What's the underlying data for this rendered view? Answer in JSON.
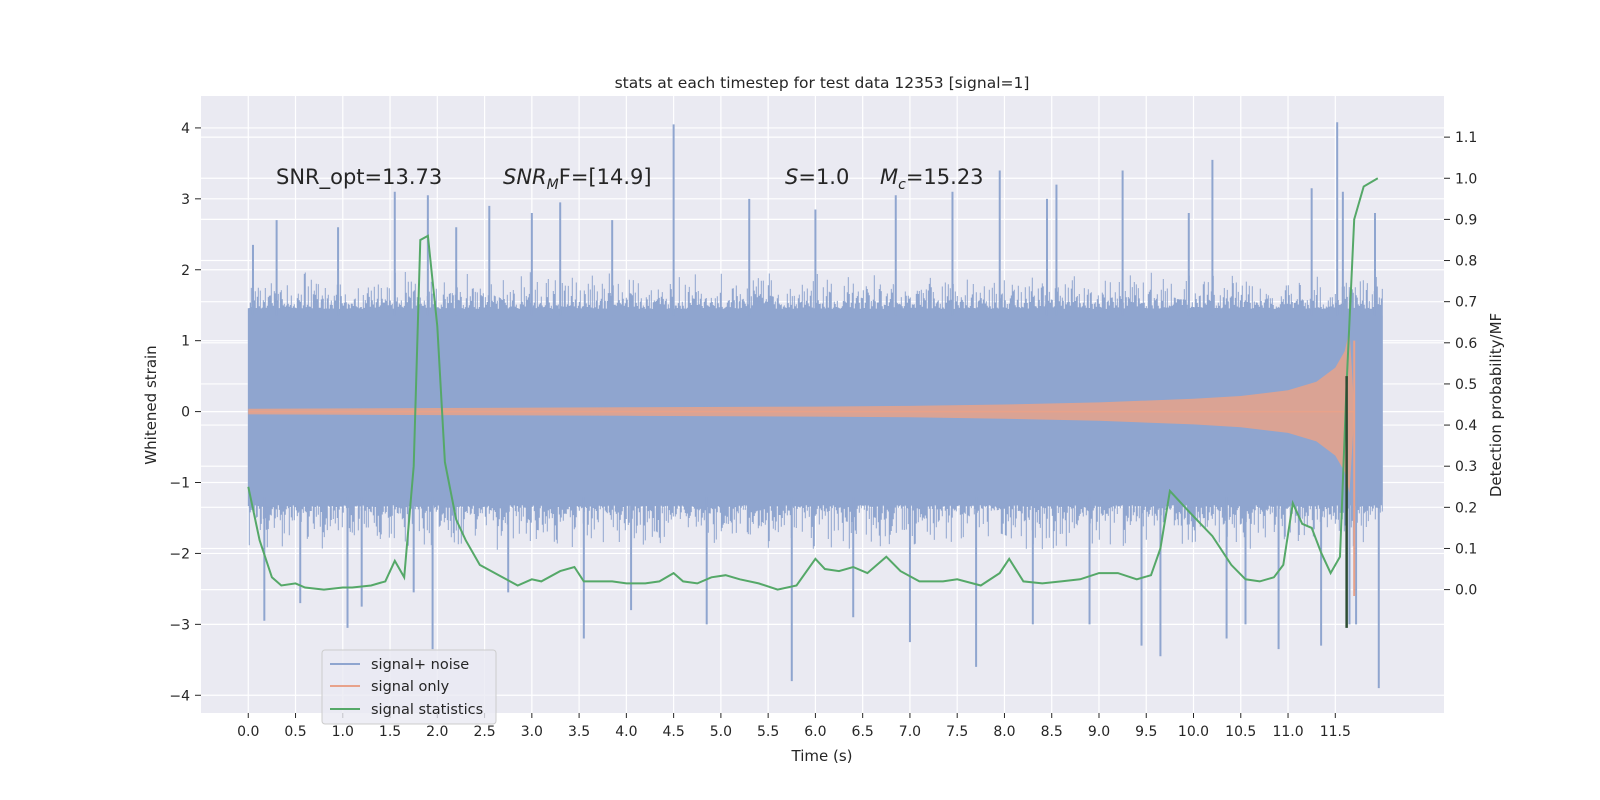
{
  "chart_data": {
    "type": "line",
    "title": "stats at each timestep for test data 12353 [signal=1]",
    "xlabel": "Time (s)",
    "ylabel": "Whitened strain",
    "ylabel_right": "Detection probability/MF",
    "xlim": [
      -0.5,
      12.65
    ],
    "ylim": [
      -4.25,
      4.45
    ],
    "ylim_right": [
      -0.3,
      1.2
    ],
    "xticks": [
      0.0,
      0.5,
      1.0,
      1.5,
      2.0,
      2.5,
      3.0,
      3.5,
      4.0,
      4.5,
      5.0,
      5.5,
      6.0,
      6.5,
      7.0,
      7.5,
      8.0,
      8.5,
      9.0,
      9.5,
      10.0,
      10.5,
      11.0,
      11.5
    ],
    "xtick_labels": [
      "0.0",
      "0.5",
      "1.0",
      "1.5",
      "2.0",
      "2.5",
      "3.0",
      "3.5",
      "4.0",
      "4.5",
      "5.0",
      "5.5",
      "6.0",
      "6.5",
      "7.0",
      "7.5",
      "8.0",
      "8.5",
      "9.0",
      "9.5",
      "10.0",
      "10.5",
      "11.0",
      "11.5"
    ],
    "yticks_left": [
      -4,
      -3,
      -2,
      -1,
      0,
      1,
      2,
      3,
      4
    ],
    "yticks_left_labels": [
      "−4",
      "−3",
      "−2",
      "−1",
      "0",
      "1",
      "2",
      "3",
      "4"
    ],
    "yticks_right": [
      0.0,
      0.1,
      0.2,
      0.3,
      0.4,
      0.5,
      0.6,
      0.7,
      0.8,
      0.9,
      1.0,
      1.1
    ],
    "yticks_right_labels": [
      "0.0",
      "0.1",
      "0.2",
      "0.3",
      "0.4",
      "0.5",
      "0.6",
      "0.7",
      "0.8",
      "0.9",
      "1.0",
      "1.1"
    ],
    "grid": true,
    "legend_placement": "lower-left",
    "annotations": {
      "snr_opt": "SNR_opt=13.73",
      "snr_mf_base": "SNR",
      "snr_mf_sub": "M",
      "snr_mf_rest": "F=[14.9]",
      "s_label": "S",
      "s_rest": "=1.0",
      "mc_label": "M",
      "mc_sub": "c",
      "mc_rest": "=15.23"
    },
    "series": [
      {
        "name": "signal+ noise",
        "color": "#8fa5cf",
        "axis": "left",
        "x_range": [
          0.0,
          12.0
        ],
        "peak_values": [
          [
            0.05,
            2.35
          ],
          [
            0.17,
            -2.95
          ],
          [
            0.3,
            2.7
          ],
          [
            0.55,
            -2.7
          ],
          [
            0.95,
            2.6
          ],
          [
            1.05,
            -3.05
          ],
          [
            1.2,
            -2.75
          ],
          [
            1.55,
            3.1
          ],
          [
            1.75,
            -2.55
          ],
          [
            1.9,
            3.05
          ],
          [
            1.95,
            -3.35
          ],
          [
            2.2,
            2.6
          ],
          [
            2.55,
            2.9
          ],
          [
            2.75,
            -2.55
          ],
          [
            3.0,
            2.8
          ],
          [
            3.3,
            2.95
          ],
          [
            3.55,
            -3.2
          ],
          [
            3.85,
            2.7
          ],
          [
            4.05,
            -2.8
          ],
          [
            4.5,
            4.05
          ],
          [
            4.85,
            -3.0
          ],
          [
            5.3,
            3.0
          ],
          [
            5.75,
            -3.8
          ],
          [
            6.0,
            2.85
          ],
          [
            6.4,
            -2.9
          ],
          [
            6.85,
            3.05
          ],
          [
            7.0,
            -3.25
          ],
          [
            7.45,
            3.1
          ],
          [
            7.7,
            -3.6
          ],
          [
            7.95,
            3.4
          ],
          [
            8.3,
            -3.0
          ],
          [
            8.45,
            3.0
          ],
          [
            8.55,
            3.2
          ],
          [
            8.9,
            -3.0
          ],
          [
            9.25,
            3.4
          ],
          [
            9.45,
            -3.3
          ],
          [
            9.65,
            -3.45
          ],
          [
            9.95,
            2.8
          ],
          [
            10.2,
            3.55
          ],
          [
            10.35,
            -3.2
          ],
          [
            10.55,
            -3.0
          ],
          [
            10.9,
            -3.35
          ],
          [
            11.25,
            3.15
          ],
          [
            11.35,
            -3.3
          ],
          [
            11.52,
            4.08
          ],
          [
            11.58,
            3.1
          ],
          [
            11.65,
            -3.0
          ],
          [
            11.72,
            -3.0
          ],
          [
            11.92,
            2.8
          ],
          [
            11.96,
            -3.9
          ]
        ],
        "core_band": [
          -1.2,
          1.35
        ],
        "envelope_typical": [
          -2.0,
          2.0
        ]
      },
      {
        "name": "signal only",
        "color": "#e8a28a",
        "axis": "left",
        "description_values": {
          "x": [
            0.0,
            2.0,
            4.0,
            6.0,
            7.0,
            8.0,
            9.0,
            10.0,
            10.5,
            11.0,
            11.3,
            11.5,
            11.6,
            11.65,
            11.7
          ],
          "amplitude": [
            0.04,
            0.05,
            0.06,
            0.07,
            0.08,
            0.1,
            0.13,
            0.18,
            0.22,
            0.3,
            0.42,
            0.62,
            0.85,
            1.15,
            0.05
          ]
        }
      },
      {
        "name": "signal statistics",
        "color": "#55a868",
        "axis": "right",
        "x": [
          0.0,
          0.12,
          0.25,
          0.35,
          0.5,
          0.6,
          0.8,
          1.0,
          1.1,
          1.3,
          1.45,
          1.55,
          1.65,
          1.75,
          1.82,
          1.9,
          2.0,
          2.08,
          2.2,
          2.3,
          2.45,
          2.65,
          2.85,
          3.0,
          3.1,
          3.3,
          3.45,
          3.55,
          3.7,
          3.85,
          4.0,
          4.2,
          4.35,
          4.5,
          4.6,
          4.75,
          4.9,
          5.05,
          5.2,
          5.4,
          5.6,
          5.8,
          6.0,
          6.1,
          6.25,
          6.4,
          6.55,
          6.75,
          6.9,
          7.1,
          7.35,
          7.5,
          7.75,
          7.95,
          8.05,
          8.2,
          8.4,
          8.6,
          8.8,
          9.0,
          9.2,
          9.4,
          9.55,
          9.65,
          9.75,
          9.95,
          10.2,
          10.4,
          10.55,
          10.7,
          10.85,
          10.95,
          11.05,
          11.15,
          11.25,
          11.35,
          11.45,
          11.55,
          11.62,
          11.7,
          11.8,
          11.95
        ],
        "values": [
          0.25,
          0.12,
          0.03,
          0.01,
          0.015,
          0.005,
          0.0,
          0.005,
          0.005,
          0.01,
          0.02,
          0.07,
          0.03,
          0.3,
          0.85,
          0.86,
          0.64,
          0.31,
          0.17,
          0.12,
          0.06,
          0.035,
          0.01,
          0.025,
          0.02,
          0.045,
          0.055,
          0.02,
          0.02,
          0.02,
          0.015,
          0.015,
          0.02,
          0.04,
          0.02,
          0.015,
          0.03,
          0.035,
          0.025,
          0.015,
          0.0,
          0.01,
          0.075,
          0.05,
          0.045,
          0.055,
          0.04,
          0.08,
          0.045,
          0.02,
          0.02,
          0.025,
          0.01,
          0.04,
          0.075,
          0.02,
          0.015,
          0.02,
          0.025,
          0.04,
          0.04,
          0.025,
          0.035,
          0.1,
          0.24,
          0.19,
          0.13,
          0.06,
          0.025,
          0.02,
          0.03,
          0.06,
          0.21,
          0.16,
          0.15,
          0.09,
          0.04,
          0.08,
          0.5,
          0.9,
          0.98,
          1.0
        ]
      }
    ]
  }
}
